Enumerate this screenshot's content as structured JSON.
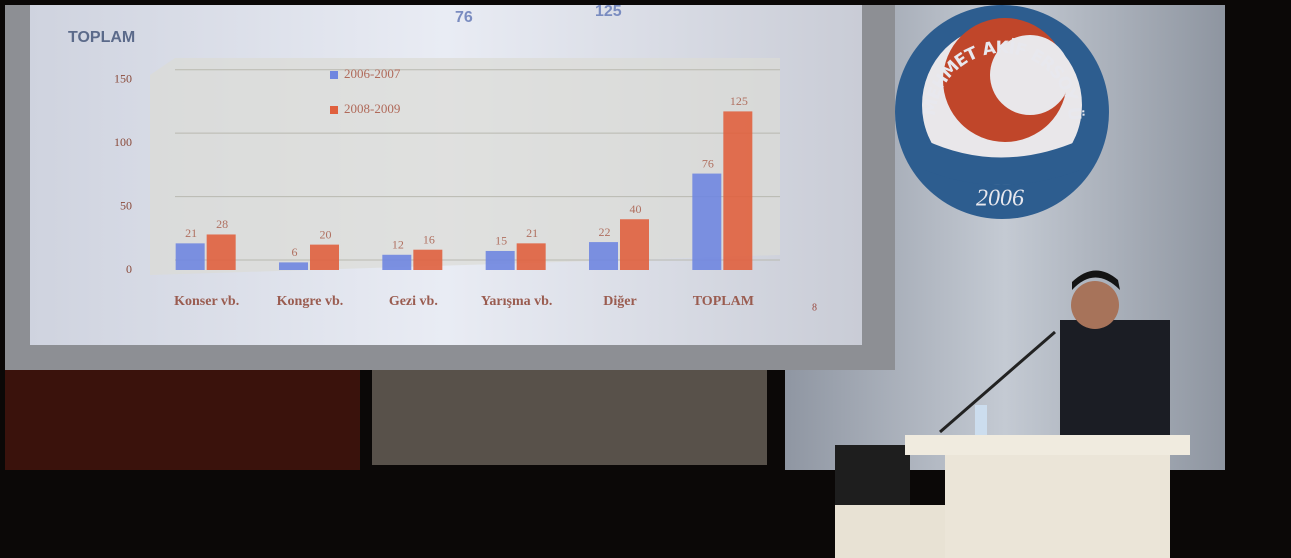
{
  "slide": {
    "header_label": "TOPLAM",
    "header_values": [
      76,
      125
    ],
    "page_number": "8"
  },
  "chart_data": {
    "type": "bar",
    "categories": [
      "Konser vb.",
      "Kongre vb.",
      "Gezi vb.",
      "Yarışma vb.",
      "Diğer",
      "TOPLAM"
    ],
    "series": [
      {
        "name": "2006-2007",
        "color": "#6f86e0",
        "values": [
          21,
          6,
          12,
          15,
          22,
          76
        ]
      },
      {
        "name": "2008-2009",
        "color": "#e0603e",
        "values": [
          28,
          20,
          16,
          21,
          40,
          125
        ]
      }
    ],
    "ylim": [
      0,
      160
    ],
    "yticks": [
      0,
      50,
      100,
      150
    ],
    "grid": true
  },
  "logo": {
    "ring_text": "MEHMET AKİF ERSOY ÜNİVERSİTESİ",
    "year": "2006"
  }
}
